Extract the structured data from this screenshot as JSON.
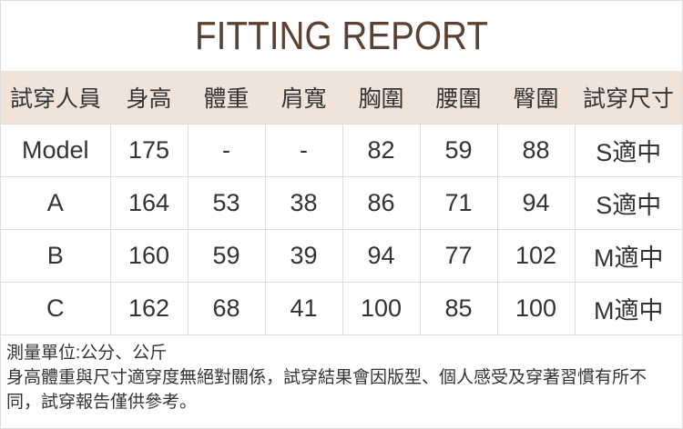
{
  "title": "FITTING REPORT",
  "colors": {
    "title": "#5a4132",
    "header_bg": "#efe3da"
  },
  "table": {
    "headers": [
      "試穿人員",
      "身高",
      "體重",
      "肩寬",
      "胸圍",
      "腰圍",
      "臀圍",
      "試穿尺寸"
    ],
    "rows": [
      [
        "Model",
        "175",
        "-",
        "-",
        "82",
        "59",
        "88",
        "S適中"
      ],
      [
        "A",
        "164",
        "53",
        "38",
        "86",
        "71",
        "94",
        "S適中"
      ],
      [
        "B",
        "160",
        "59",
        "39",
        "94",
        "77",
        "102",
        "M適中"
      ],
      [
        "C",
        "162",
        "68",
        "41",
        "100",
        "85",
        "100",
        "M適中"
      ]
    ]
  },
  "notes": {
    "units": "測量單位:公分、公斤",
    "disclaimer": "身高體重與尺寸適穿度無絕對關係，試穿結果會因版型、個人感受及穿著習慣有所不同，試穿報告僅供參考。"
  }
}
